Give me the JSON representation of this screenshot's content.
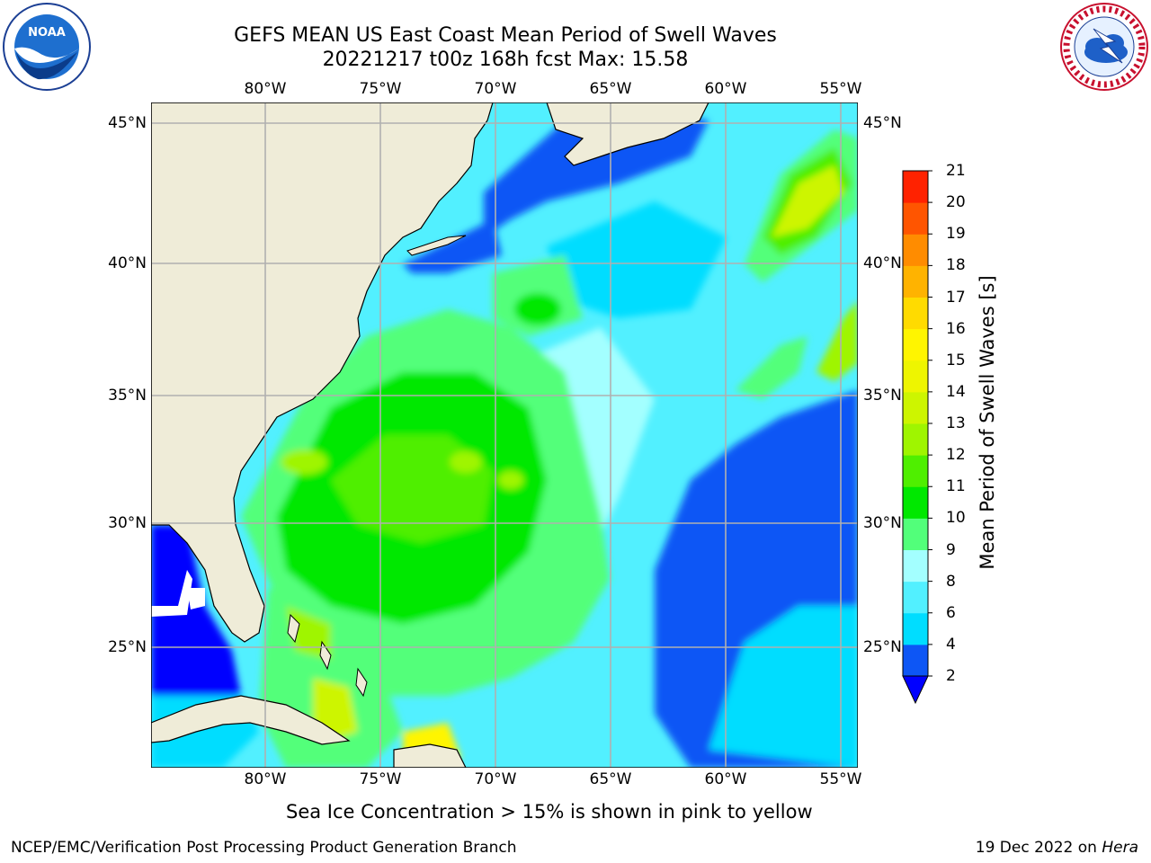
{
  "title": {
    "line1": "GEFS MEAN US East Coast Mean Period of Swell Waves",
    "line2": "20221217 t00z 168h fcst   Max: 15.58"
  },
  "logos": {
    "left": {
      "icon": "noaa-logo",
      "text": "NOAA"
    },
    "right": {
      "icon": "nws-logo"
    }
  },
  "map": {
    "lon_labels": [
      "80°W",
      "75°W",
      "70°W",
      "65°W",
      "60°W",
      "55°W"
    ],
    "lat_labels": [
      "45°N",
      "40°N",
      "35°N",
      "30°N",
      "25°N"
    ],
    "land_color": "#efecd8",
    "grid_color": "#b0b0b0"
  },
  "colorbar": {
    "title": "Mean Period of Swell Waves [s]",
    "ticks": [
      "2",
      "4",
      "6",
      "8",
      "9",
      "10",
      "11",
      "12",
      "13",
      "14",
      "15",
      "16",
      "17",
      "18",
      "19",
      "20",
      "21"
    ],
    "colors": [
      "#0d56f5",
      "#00ddff",
      "#52f0ff",
      "#a3ffff",
      "#52ff7a",
      "#00e800",
      "#4fef00",
      "#9ff500",
      "#cdf500",
      "#eef500",
      "#fff500",
      "#ffdb00",
      "#ffb300",
      "#ff8c00",
      "#ff5500",
      "#ff2200",
      "#ff0000"
    ],
    "under_color": "#0000ff"
  },
  "footnote": "Sea Ice Concentration > 15% is shown in pink to yellow",
  "footer": {
    "left": "NCEP/EMC/Verification Post Processing Product Generation Branch",
    "right_prefix": "19 Dec 2022 on ",
    "right_host": "Hera"
  }
}
